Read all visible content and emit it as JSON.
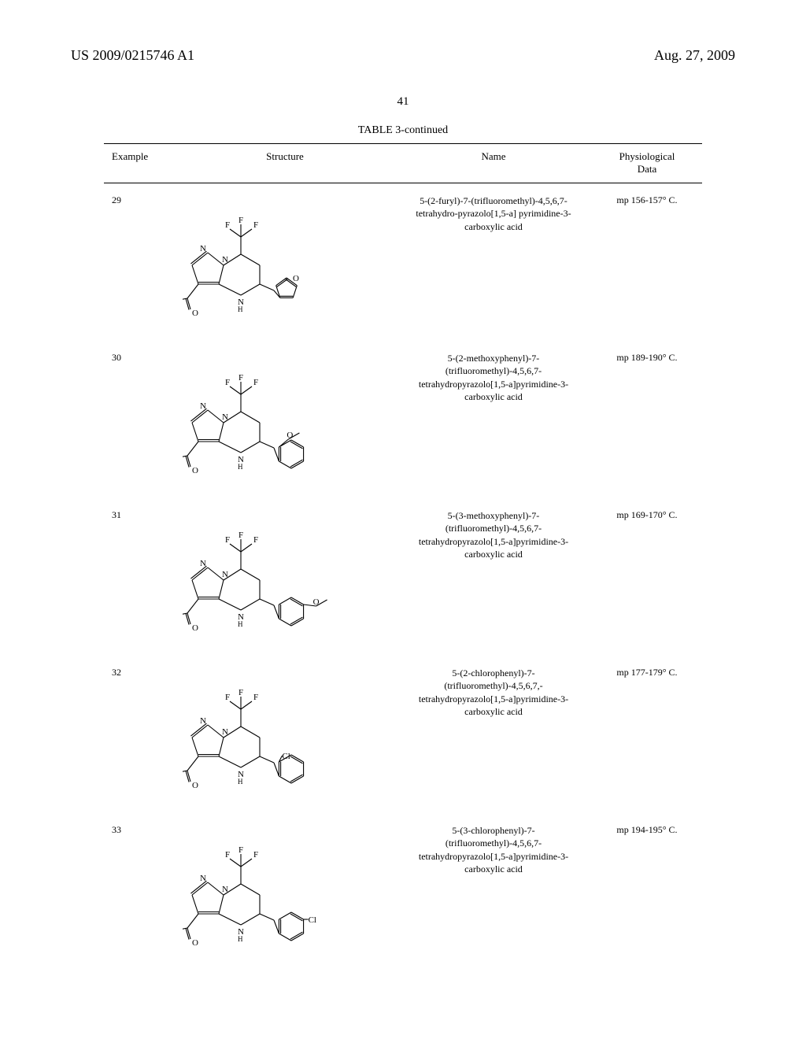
{
  "header": {
    "left": "US 2009/0215746 A1",
    "right": "Aug. 27, 2009"
  },
  "page_number": "41",
  "table": {
    "title": "TABLE 3-continued",
    "columns": {
      "example": "Example",
      "structure": "Structure",
      "name": "Name",
      "phys": "Physiological Data"
    },
    "rows": [
      {
        "example": "29",
        "name": "5-(2-furyl)-7-(trifluoromethyl)-4,5,6,7-tetrahydro-pyrazolo[1,5-a] pyrimidine-3-carboxylic acid",
        "phys": "mp 156-157° C.",
        "subst": "furyl"
      },
      {
        "example": "30",
        "name": "5-(2-methoxyphenyl)-7-(trifluoromethyl)-4,5,6,7-tetrahydropyrazolo[1,5-a]pyrimidine-3-carboxylic acid",
        "phys": "mp 189-190° C.",
        "subst": "ome2"
      },
      {
        "example": "31",
        "name": "5-(3-methoxyphenyl)-7-(trifluoromethyl)-4,5,6,7-tetrahydropyrazolo[1,5-a]pyrimidine-3-carboxylic acid",
        "phys": "mp 169-170° C.",
        "subst": "ome3"
      },
      {
        "example": "32",
        "name": "5-(2-chlorophenyl)-7-(trifluoromethyl)-4,5,6,7,-tetrahydropyrazolo[1,5-a]pyrimidine-3-carboxylic acid",
        "phys": "mp 177-179° C.",
        "subst": "cl2"
      },
      {
        "example": "33",
        "name": "5-(3-chlorophenyl)-7-(trifluoromethyl)-4,5,6,7-tetrahydropyrazolo[1,5-a]pyrimidine-3-carboxylic acid",
        "phys": "mp 194-195° C.",
        "subst": "cl3"
      }
    ]
  },
  "style": {
    "stroke": "#000000",
    "stroke_width": 1.1,
    "font": "11px Times New Roman",
    "struct_height": 180
  }
}
